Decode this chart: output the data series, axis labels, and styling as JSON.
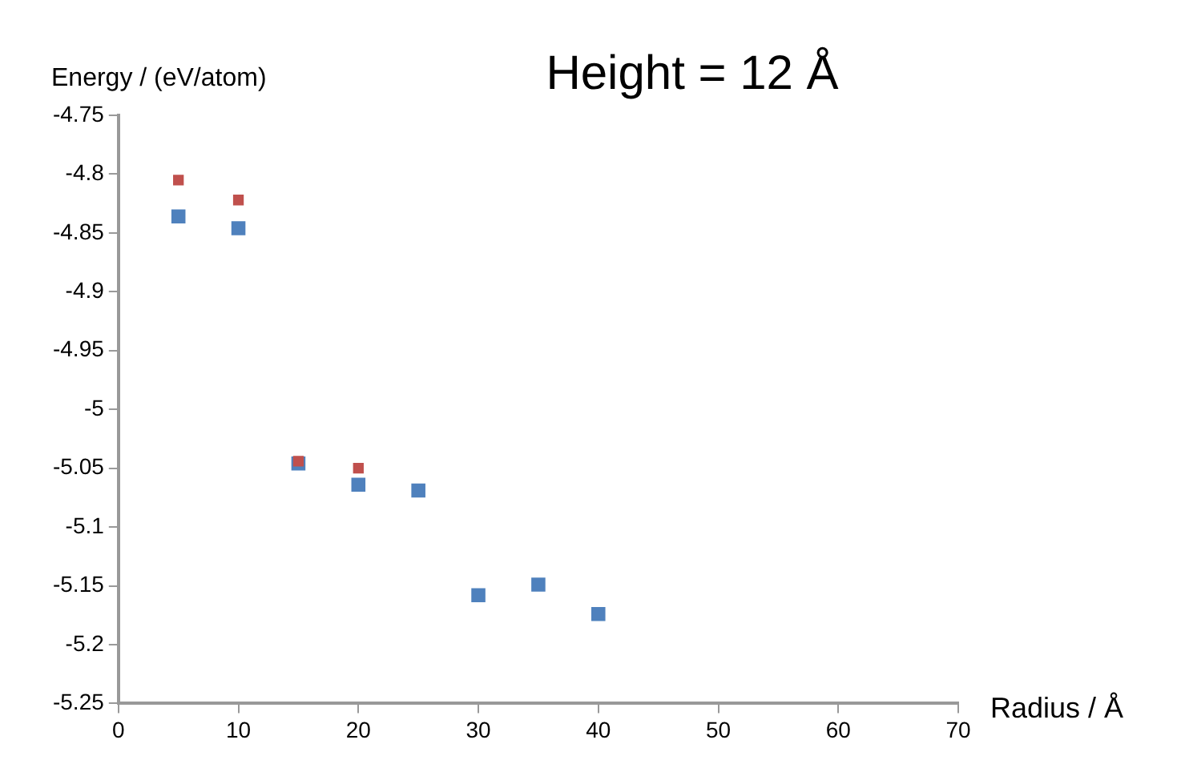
{
  "chart_data": {
    "type": "scatter",
    "title": "Height = 12 Å",
    "xlabel": "Radius / Å",
    "ylabel": "Energy / (eV/atom)",
    "x": [
      5,
      10,
      15,
      20,
      25,
      30,
      35,
      40
    ],
    "series": [
      {
        "color": "#c0504d",
        "values": [
          -4.805,
          -4.822,
          -5.044,
          -5.05,
          null,
          null,
          null,
          null
        ]
      },
      {
        "color": "#4f81bd",
        "values": [
          -4.836,
          -4.846,
          -5.046,
          -5.064,
          -5.069,
          -5.158,
          -5.149,
          -5.174
        ]
      }
    ],
    "xlim": [
      0,
      70
    ],
    "xticks": [
      0,
      10,
      20,
      30,
      40,
      50,
      60,
      70
    ],
    "ylim": [
      -5.25,
      -4.75
    ],
    "yticks": [
      -5.25,
      -5.2,
      -5.15,
      -5.1,
      -5.05,
      -5,
      -4.95,
      -4.9,
      -4.85,
      -4.8,
      -4.75
    ],
    "grid": false,
    "legend": false,
    "marker": "square"
  }
}
